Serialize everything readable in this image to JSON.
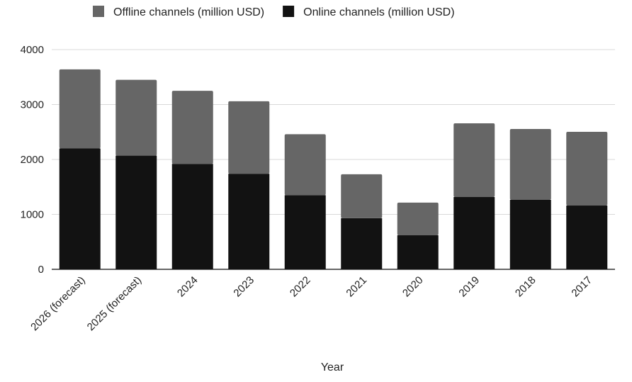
{
  "chart_data": {
    "type": "bar",
    "stacked": true,
    "title": "",
    "xlabel": "Year",
    "ylabel": "",
    "ylim": [
      0,
      4000
    ],
    "yticks": [
      0,
      1000,
      2000,
      3000,
      4000
    ],
    "grid": true,
    "legend_position": "top",
    "categories": [
      "2026 (forecast)",
      "2025 (forecast)",
      "2024",
      "2023",
      "2022",
      "2021",
      "2020",
      "2019",
      "2018",
      "2017"
    ],
    "series": [
      {
        "name": "Online channels (million USD)",
        "color": "#121212",
        "values": [
          2200,
          2070,
          1920,
          1740,
          1350,
          930,
          620,
          1316,
          1265,
          1161
        ]
      },
      {
        "name": "Offline channels (million USD)",
        "color": "#666666",
        "values": [
          1440,
          1380,
          1330,
          1320,
          1110,
          800,
          595,
          1342,
          1290,
          1342
        ]
      }
    ],
    "legend_order": [
      1,
      0
    ]
  }
}
